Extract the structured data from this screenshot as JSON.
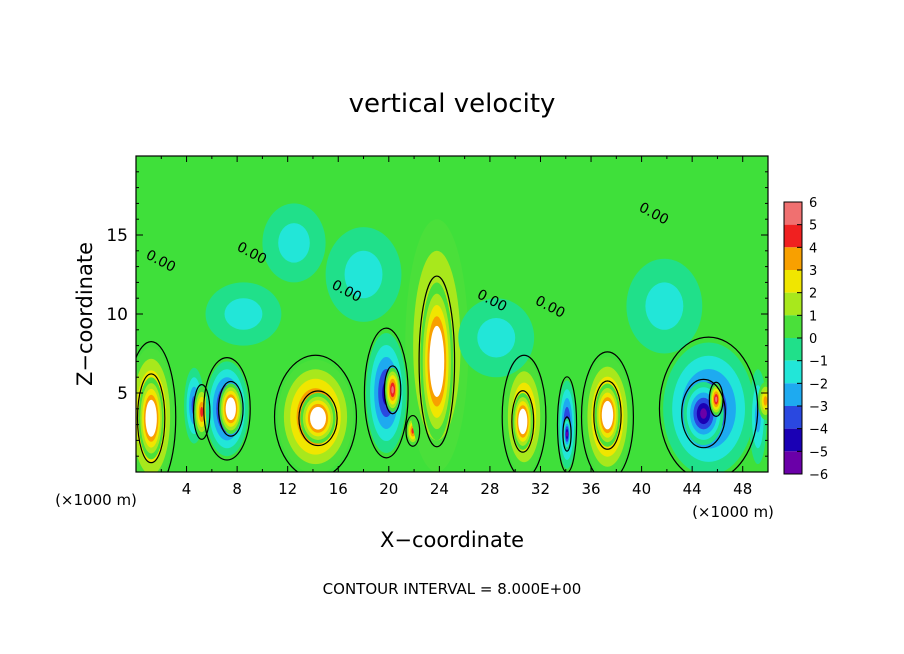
{
  "chart_data": {
    "type": "heatmap",
    "title": "vertical velocity",
    "xlabel": "X−coordinate",
    "ylabel": "Z−coordinate",
    "x_unit_left": "(×1000 m)",
    "x_unit_right": "(×1000 m)",
    "footer": "CONTOUR INTERVAL = 8.000E+00",
    "xlim": [
      0,
      50
    ],
    "ylim": [
      0,
      20
    ],
    "x_ticks": [
      4,
      8,
      12,
      16,
      20,
      24,
      28,
      32,
      36,
      40,
      44,
      48
    ],
    "x_tick_labels": [
      "4",
      "8",
      "12",
      "16",
      "20",
      "24",
      "28",
      "32",
      "36",
      "40",
      "44",
      "48"
    ],
    "y_ticks": [
      5,
      10,
      15
    ],
    "y_tick_labels": [
      "5",
      "10",
      "15"
    ],
    "colorbar": {
      "min": -6,
      "max": 6,
      "ticks": [
        6,
        5,
        4,
        3,
        2,
        1,
        0,
        -1,
        -2,
        -3,
        -4,
        -5,
        -6
      ],
      "tick_labels": [
        "6",
        "5",
        "4",
        "3",
        "2",
        "1",
        "0",
        "−1",
        "−2",
        "−3",
        "−4",
        "−5",
        "−6"
      ]
    },
    "contour_labels": [
      {
        "text": "0.00",
        "x": 1.8,
        "y": 13.1
      },
      {
        "text": "0.00",
        "x": 9.0,
        "y": 13.6
      },
      {
        "text": "0.00",
        "x": 16.5,
        "y": 11.2
      },
      {
        "text": "0.00",
        "x": 28.0,
        "y": 10.6
      },
      {
        "text": "0.00",
        "x": 32.6,
        "y": 10.2
      },
      {
        "text": "0.00",
        "x": 40.8,
        "y": 16.1
      }
    ],
    "cells": [
      {
        "x": 1.2,
        "y": 3.5,
        "rx": 1.8,
        "ry": 4.4,
        "v": 5.8
      },
      {
        "x": 1.2,
        "y": 3.4,
        "rx": 1.0,
        "ry": 2.6,
        "v": 6.5
      },
      {
        "x": 4.6,
        "y": 4.2,
        "rx": 0.8,
        "ry": 2.4,
        "v": -4.0
      },
      {
        "x": 5.2,
        "y": 3.8,
        "rx": 0.6,
        "ry": 1.6,
        "v": 5.0
      },
      {
        "x": 7.2,
        "y": 4.0,
        "rx": 1.7,
        "ry": 3.0,
        "v": -5.2
      },
      {
        "x": 7.5,
        "y": 4.0,
        "rx": 0.9,
        "ry": 1.6,
        "v": 6.5
      },
      {
        "x": 14.2,
        "y": 3.5,
        "rx": 3.0,
        "ry": 3.6,
        "v": 5.3
      },
      {
        "x": 14.4,
        "y": 3.4,
        "rx": 1.4,
        "ry": 1.6,
        "v": 6.5
      },
      {
        "x": 19.8,
        "y": 5.0,
        "rx": 1.6,
        "ry": 3.8,
        "v": -5.0
      },
      {
        "x": 20.3,
        "y": 5.2,
        "rx": 0.6,
        "ry": 1.4,
        "v": 6.0
      },
      {
        "x": 21.9,
        "y": 2.6,
        "rx": 0.5,
        "ry": 0.9,
        "v": 5.0
      },
      {
        "x": 23.8,
        "y": 8.0,
        "rx": 2.5,
        "ry": 8.0,
        "v": 4.0
      },
      {
        "x": 23.8,
        "y": 7.0,
        "rx": 1.3,
        "ry": 5.0,
        "v": 6.5
      },
      {
        "x": 18.0,
        "y": 12.5,
        "rx": 3.0,
        "ry": 3.0,
        "v": -1.8
      },
      {
        "x": 12.5,
        "y": 14.5,
        "rx": 2.5,
        "ry": 2.5,
        "v": -1.5
      },
      {
        "x": 30.7,
        "y": 3.5,
        "rx": 1.6,
        "ry": 3.6,
        "v": 5.0
      },
      {
        "x": 30.6,
        "y": 3.2,
        "rx": 0.8,
        "ry": 1.8,
        "v": 6.5
      },
      {
        "x": 34.1,
        "y": 3.0,
        "rx": 0.7,
        "ry": 2.8,
        "v": -4.8
      },
      {
        "x": 34.1,
        "y": 2.4,
        "rx": 0.3,
        "ry": 1.0,
        "v": -6.0
      },
      {
        "x": 37.3,
        "y": 3.5,
        "rx": 1.9,
        "ry": 3.8,
        "v": 5.2
      },
      {
        "x": 37.3,
        "y": 3.6,
        "rx": 1.0,
        "ry": 2.0,
        "v": 6.5
      },
      {
        "x": 45.3,
        "y": 4.0,
        "rx": 3.6,
        "ry": 4.2,
        "v": -5.0
      },
      {
        "x": 44.9,
        "y": 3.7,
        "rx": 1.6,
        "ry": 2.0,
        "v": -6.0
      },
      {
        "x": 45.9,
        "y": 4.6,
        "rx": 0.5,
        "ry": 1.0,
        "v": 6.0
      },
      {
        "x": 49.2,
        "y": 3.5,
        "rx": 0.7,
        "ry": 3.0,
        "v": -3.0
      },
      {
        "x": 49.8,
        "y": 4.5,
        "rx": 0.6,
        "ry": 1.2,
        "v": 4.0
      },
      {
        "x": 41.8,
        "y": 10.5,
        "rx": 3.0,
        "ry": 3.0,
        "v": -1.6
      },
      {
        "x": 28.5,
        "y": 8.5,
        "rx": 3.0,
        "ry": 2.5,
        "v": -1.2
      },
      {
        "x": 8.5,
        "y": 10.0,
        "rx": 3.0,
        "ry": 2.0,
        "v": -1.3
      }
    ]
  }
}
